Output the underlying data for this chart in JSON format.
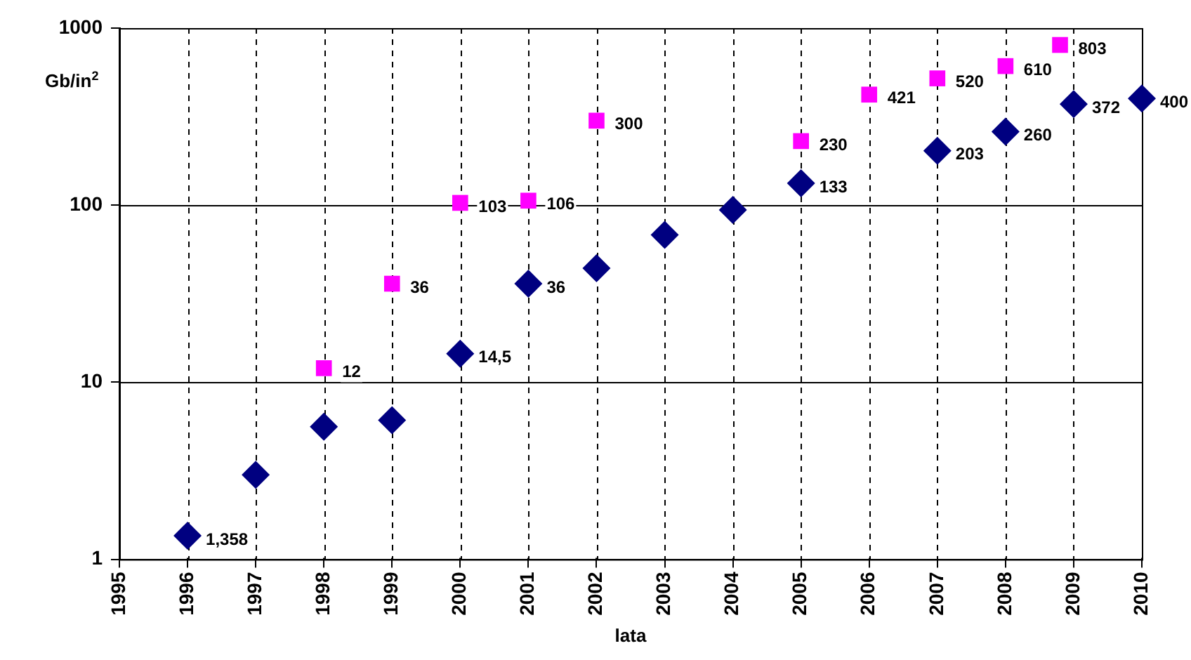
{
  "chart_data": {
    "type": "scatter",
    "xlabel": "lata",
    "ylabel": "Gb/in$^{2}$",
    "log": "y",
    "grid": true,
    "legend": false,
    "annotations": [
      {
        "text": "1,358",
        "x": 1996,
        "y": 1.358
      }
    ],
    "xlim": [
      1995,
      2010
    ],
    "xticks": [
      1995,
      1996,
      1997,
      1998,
      1999,
      2000,
      2001,
      2002,
      2003,
      2004,
      2005,
      2006,
      2007,
      2008,
      2009,
      2010
    ],
    "ylim": [
      1,
      1000
    ],
    "yticks": [
      1,
      10,
      100,
      1000
    ],
    "series": [
      {
        "color": "#000080",
        "marker": "diamond",
        "x": [
          1996,
          1997,
          1998,
          1999,
          2000,
          2001,
          2002,
          2003,
          2004,
          2005,
          2007,
          2008,
          2009,
          2010
        ],
        "values": [
          1.358,
          3,
          5.6,
          6.1,
          14.5,
          36,
          44,
          68,
          94,
          133,
          203,
          260,
          372,
          400
        ],
        "value_labels": [
          null,
          null,
          null,
          null,
          "14,5",
          "36",
          null,
          null,
          null,
          "133",
          "203",
          "260",
          "372",
          "400"
        ]
      },
      {
        "color": "#ff00ff",
        "marker": "square",
        "x": [
          1998,
          1999,
          2000,
          2001,
          2002,
          2005,
          2006,
          2007,
          2008,
          2008.8
        ],
        "values": [
          12,
          36,
          103,
          106,
          300,
          230,
          421,
          520,
          610,
          803
        ],
        "value_labels": [
          "12",
          "36",
          "103",
          "106",
          "300",
          "230",
          "421",
          "520",
          "610",
          "803"
        ]
      }
    ]
  }
}
